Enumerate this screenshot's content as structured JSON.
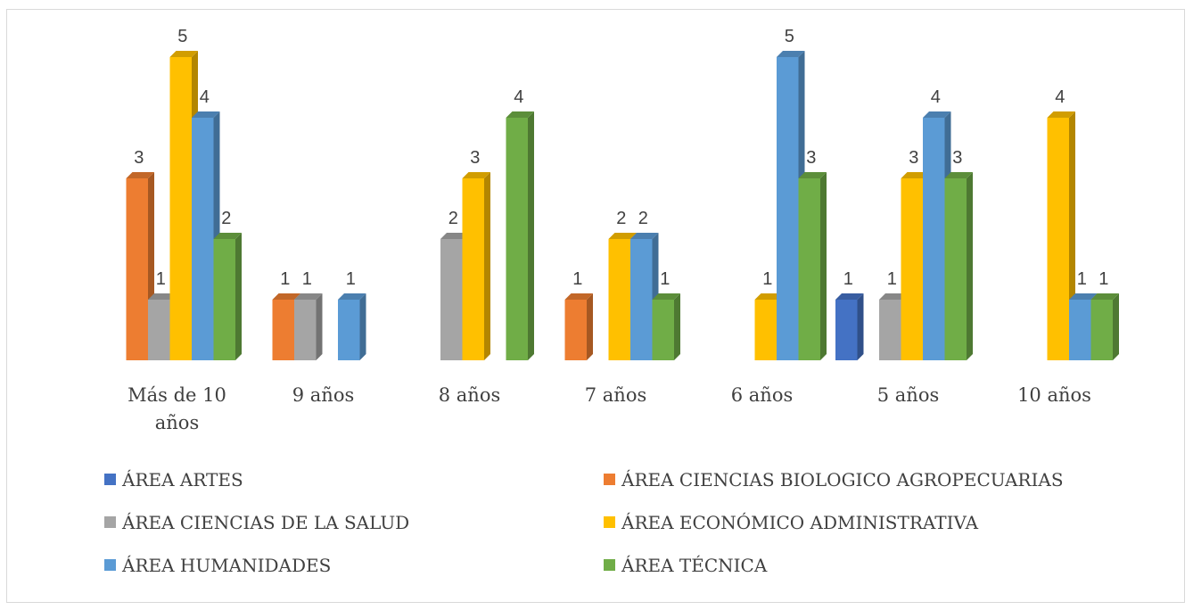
{
  "chart_data": {
    "type": "bar",
    "style": "3d-clustered-column",
    "categories": [
      "Más de 10 años",
      "9 años",
      "8 años",
      "7 años",
      "6 años",
      "5 años",
      "10 años"
    ],
    "series": [
      {
        "name": "ÁREA ARTES",
        "color": "#4472c4",
        "values": [
          null,
          null,
          null,
          null,
          null,
          1,
          null
        ]
      },
      {
        "name": "ÁREA CIENCIAS BIOLOGICO AGROPECUARIAS",
        "color": "#ed7d31",
        "values": [
          3,
          1,
          null,
          1,
          null,
          null,
          null
        ]
      },
      {
        "name": "ÁREA CIENCIAS DE LA SALUD",
        "color": "#a5a5a5",
        "values": [
          1,
          1,
          2,
          null,
          null,
          1,
          null
        ]
      },
      {
        "name": "ÁREA ECONÓMICO ADMINISTRATIVA",
        "color": "#ffc000",
        "values": [
          5,
          null,
          3,
          2,
          1,
          3,
          4
        ]
      },
      {
        "name": "ÁREA HUMANIDADES",
        "color": "#5b9bd5",
        "values": [
          4,
          1,
          null,
          2,
          5,
          4,
          1
        ]
      },
      {
        "name": "ÁREA TÉCNICA",
        "color": "#70ad47",
        "values": [
          2,
          null,
          4,
          1,
          3,
          3,
          1
        ]
      }
    ],
    "title": "",
    "xlabel": "",
    "ylabel": "",
    "ylim": [
      0,
      5
    ],
    "grid": false,
    "data_labels": true,
    "legend_position": "bottom"
  }
}
